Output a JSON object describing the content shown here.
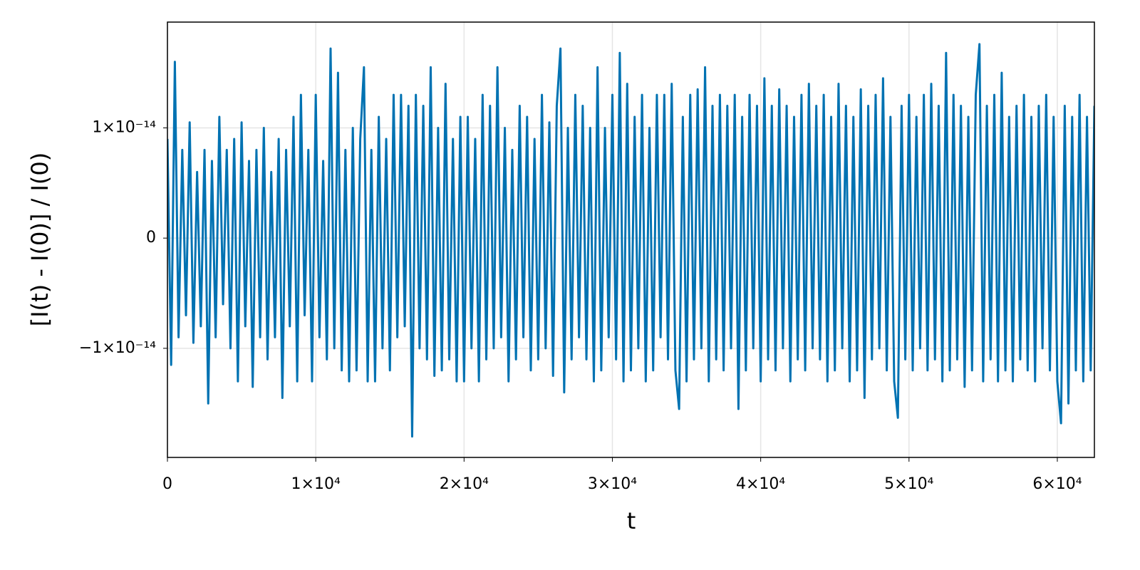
{
  "chart_data": {
    "type": "line",
    "xlabel": "t",
    "ylabel": "[I(t) - I(0)] / I(0)",
    "xlim": [
      0,
      62500
    ],
    "ylim": [
      -1.99e-14,
      1.96e-14
    ],
    "xticks": [
      0,
      {
        "value": 10000,
        "label": "1×10⁴"
      },
      {
        "value": 20000,
        "label": "2×10⁴"
      },
      {
        "value": 30000,
        "label": "3×10⁴"
      },
      {
        "value": 40000,
        "label": "4×10⁴"
      },
      {
        "value": 50000,
        "label": "5×10⁴"
      },
      {
        "value": 60000,
        "label": "6×10⁴"
      }
    ],
    "yticks": [
      {
        "value": -1e-14,
        "label": "−1×10⁻¹⁴"
      },
      0,
      {
        "value": 1e-14,
        "label": "1×10⁻¹⁴"
      }
    ],
    "grid": true,
    "x": [
      0,
      250,
      500,
      750,
      1000,
      1250,
      1500,
      1750,
      2000,
      2250,
      2500,
      2750,
      3000,
      3250,
      3500,
      3750,
      4000,
      4250,
      4500,
      4750,
      5000,
      5250,
      5500,
      5750,
      6000,
      6250,
      6500,
      6750,
      7000,
      7250,
      7500,
      7750,
      8000,
      8250,
      8500,
      8750,
      9000,
      9250,
      9500,
      9750,
      10000,
      10250,
      10500,
      10750,
      11000,
      11250,
      11500,
      11750,
      12000,
      12250,
      12500,
      12750,
      13000,
      13250,
      13500,
      13750,
      14000,
      14250,
      14500,
      14750,
      15000,
      15250,
      15500,
      15750,
      16000,
      16250,
      16500,
      16750,
      17000,
      17250,
      17500,
      17750,
      18000,
      18250,
      18500,
      18750,
      19000,
      19250,
      19500,
      19750,
      20000,
      20250,
      20500,
      20750,
      21000,
      21250,
      21500,
      21750,
      22000,
      22250,
      22500,
      22750,
      23000,
      23250,
      23500,
      23750,
      24000,
      24250,
      24500,
      24750,
      25000,
      25250,
      25500,
      25750,
      26000,
      26250,
      26500,
      26750,
      27000,
      27250,
      27500,
      27750,
      28000,
      28250,
      28500,
      28750,
      29000,
      29250,
      29500,
      29750,
      30000,
      30250,
      30500,
      30750,
      31000,
      31250,
      31500,
      31750,
      32000,
      32250,
      32500,
      32750,
      33000,
      33250,
      33500,
      33750,
      34000,
      34250,
      34500,
      34750,
      35000,
      35250,
      35500,
      35750,
      36000,
      36250,
      36500,
      36750,
      37000,
      37250,
      37500,
      37750,
      38000,
      38250,
      38500,
      38750,
      39000,
      39250,
      39500,
      39750,
      40000,
      40250,
      40500,
      40750,
      41000,
      41250,
      41500,
      41750,
      42000,
      42250,
      42500,
      42750,
      43000,
      43250,
      43500,
      43750,
      44000,
      44250,
      44500,
      44750,
      45000,
      45250,
      45500,
      45750,
      46000,
      46250,
      46500,
      46750,
      47000,
      47250,
      47500,
      47750,
      48000,
      48250,
      48500,
      48750,
      49000,
      49250,
      49500,
      49750,
      50000,
      50250,
      50500,
      50750,
      51000,
      51250,
      51500,
      51750,
      52000,
      52250,
      52500,
      52750,
      53000,
      53250,
      53500,
      53750,
      54000,
      54250,
      54500,
      54750,
      55000,
      55250,
      55500,
      55750,
      56000,
      56250,
      56500,
      56750,
      57000,
      57250,
      57500,
      57750,
      58000,
      58250,
      58500,
      58750,
      59000,
      59250,
      59500,
      59750,
      60000,
      60250,
      60500,
      60750,
      61000,
      61250,
      61500,
      61750,
      62000,
      62250,
      62500
    ],
    "series": [
      {
        "color": "#0072b2",
        "values": [
          9e-15,
          -1.15e-14,
          1.6e-14,
          -9e-15,
          8e-15,
          -7e-15,
          1.05e-14,
          -9.5e-15,
          6e-15,
          -8e-15,
          8e-15,
          -1.5e-14,
          7e-15,
          -9e-15,
          1.1e-14,
          -6e-15,
          8e-15,
          -1e-14,
          9e-15,
          -1.3e-14,
          1.05e-14,
          -8e-15,
          7e-15,
          -1.35e-14,
          8e-15,
          -9e-15,
          1e-14,
          -1.1e-14,
          6e-15,
          -9e-15,
          9e-15,
          -1.45e-14,
          8e-15,
          -8e-15,
          1.1e-14,
          -1.3e-14,
          1.3e-14,
          -7e-15,
          8e-15,
          -1.3e-14,
          1.3e-14,
          -9e-15,
          7e-15,
          -1.1e-14,
          1.72e-14,
          -1e-14,
          1.5e-14,
          -1.2e-14,
          8e-15,
          -1.3e-14,
          1e-14,
          -1.2e-14,
          9e-15,
          1.55e-14,
          -1.3e-14,
          8e-15,
          -1.3e-14,
          1.1e-14,
          -1e-14,
          9e-15,
          -1.2e-14,
          1.3e-14,
          -9e-15,
          1.3e-14,
          -8e-15,
          1.2e-14,
          -1.8e-14,
          1.3e-14,
          -1e-14,
          1.2e-14,
          -1.1e-14,
          1.55e-14,
          -1.25e-14,
          1e-14,
          -1.2e-14,
          1.4e-14,
          -1.1e-14,
          9e-15,
          -1.3e-14,
          1.1e-14,
          -1.3e-14,
          1.1e-14,
          -1e-14,
          9e-15,
          -1.3e-14,
          1.3e-14,
          -1.1e-14,
          1.2e-14,
          -1e-14,
          1.55e-14,
          -9e-15,
          1e-14,
          -1.3e-14,
          8e-15,
          -1.1e-14,
          1.2e-14,
          -9e-15,
          1.1e-14,
          -1.2e-14,
          9e-15,
          -1.1e-14,
          1.3e-14,
          -1e-14,
          1.05e-14,
          -1.25e-14,
          1.2e-14,
          1.72e-14,
          -1.4e-14,
          1e-14,
          -1.1e-14,
          1.3e-14,
          -9e-15,
          1.2e-14,
          -1.1e-14,
          1e-14,
          -1.3e-14,
          1.55e-14,
          -1.2e-14,
          1e-14,
          -9e-15,
          1.3e-14,
          -1.1e-14,
          1.68e-14,
          -1.3e-14,
          1.4e-14,
          -1.2e-14,
          1.1e-14,
          -1e-14,
          1.3e-14,
          -1.3e-14,
          1e-14,
          -1.2e-14,
          1.3e-14,
          -9e-15,
          1.3e-14,
          -1.1e-14,
          1.4e-14,
          -1.2e-14,
          -1.55e-14,
          1.1e-14,
          -1.3e-14,
          1.3e-14,
          -1.1e-14,
          1.35e-14,
          -1e-14,
          1.55e-14,
          -1.3e-14,
          1.2e-14,
          -1.1e-14,
          1.3e-14,
          -1.2e-14,
          1.2e-14,
          -1e-14,
          1.3e-14,
          -1.55e-14,
          1.1e-14,
          -1.2e-14,
          1.3e-14,
          -1e-14,
          1.2e-14,
          -1.3e-14,
          1.45e-14,
          -1.1e-14,
          1.2e-14,
          -1.2e-14,
          1.35e-14,
          -1e-14,
          1.2e-14,
          -1.3e-14,
          1.1e-14,
          -1.1e-14,
          1.3e-14,
          -1.2e-14,
          1.4e-14,
          -1e-14,
          1.2e-14,
          -1.1e-14,
          1.3e-14,
          -1.3e-14,
          1.1e-14,
          -1.2e-14,
          1.4e-14,
          -1e-14,
          1.2e-14,
          -1.3e-14,
          1.1e-14,
          -1.2e-14,
          1.35e-14,
          -1.45e-14,
          1.2e-14,
          -1.1e-14,
          1.3e-14,
          -1e-14,
          1.45e-14,
          -1.2e-14,
          1.1e-14,
          -1.3e-14,
          -1.63e-14,
          1.2e-14,
          -1.1e-14,
          1.3e-14,
          -1.2e-14,
          1.1e-14,
          -1e-14,
          1.3e-14,
          -1.2e-14,
          1.4e-14,
          -1.1e-14,
          1.2e-14,
          -1.3e-14,
          1.68e-14,
          -1.2e-14,
          1.3e-14,
          -1.1e-14,
          1.2e-14,
          -1.35e-14,
          1.1e-14,
          -1.2e-14,
          1.3e-14,
          1.76e-14,
          -1.3e-14,
          1.2e-14,
          -1.1e-14,
          1.3e-14,
          -1.3e-14,
          1.5e-14,
          -1.2e-14,
          1.1e-14,
          -1.3e-14,
          1.2e-14,
          -1.1e-14,
          1.3e-14,
          -1.2e-14,
          1.1e-14,
          -1.3e-14,
          1.2e-14,
          -1e-14,
          1.3e-14,
          -1.2e-14,
          1.1e-14,
          -1.3e-14,
          -1.68e-14,
          1.2e-14,
          -1.5e-14,
          1.1e-14,
          -1.2e-14,
          1.3e-14,
          -1.3e-14,
          1.1e-14,
          -1.2e-14,
          1.2e-14
        ]
      }
    ]
  }
}
